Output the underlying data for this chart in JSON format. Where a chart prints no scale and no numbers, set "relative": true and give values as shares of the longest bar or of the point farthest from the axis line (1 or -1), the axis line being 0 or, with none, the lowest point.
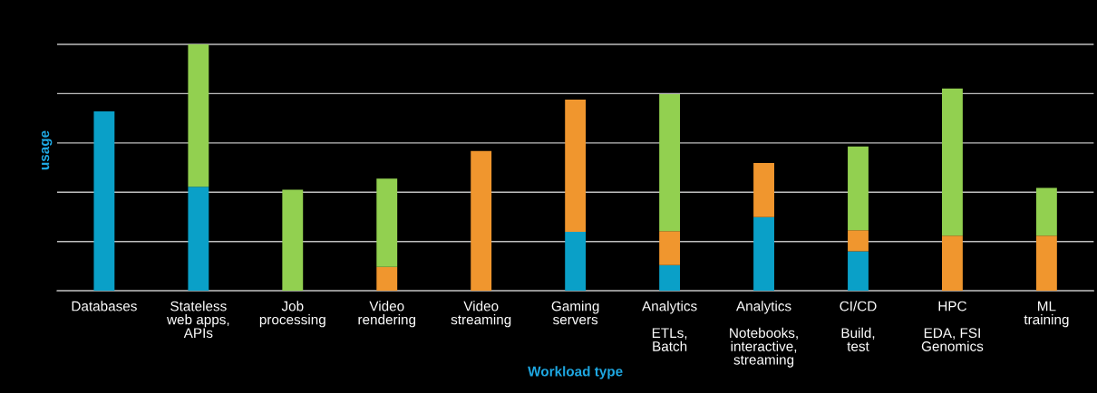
{
  "chart_data": {
    "type": "bar",
    "stacked": true,
    "relative": true,
    "grid": "y",
    "xlabel": "Workload type",
    "ylabel": "usage",
    "categories": [
      "Databases",
      "Stateless\nweb apps,\nAPIs",
      "Job\nprocessing",
      "Video\nrendering",
      "Video\nstreaming",
      "Gaming\nservers",
      "Analytics\n\nETLs,\nBatch",
      "Analytics\n\nNotebooks,\ninteractive,\nstreaming",
      "CI/CD\n\nBuild,\ntest",
      "HPC\n\nEDA, FSI\nGenomics",
      "ML\ntraining"
    ],
    "series": [
      {
        "color": "#0aa0c8",
        "values": [
          0.728,
          0.422,
          null,
          null,
          null,
          0.239,
          0.104,
          0.299,
          0.16,
          null,
          null
        ]
      },
      {
        "color": "#f0962e",
        "values": [
          null,
          null,
          null,
          0.097,
          0.567,
          0.537,
          0.138,
          0.22,
          0.086,
          0.224,
          0.224
        ]
      },
      {
        "color": "#92d050",
        "values": [
          null,
          0.578,
          0.41,
          0.358,
          null,
          null,
          0.556,
          null,
          0.34,
          0.597,
          0.194
        ]
      }
    ]
  }
}
